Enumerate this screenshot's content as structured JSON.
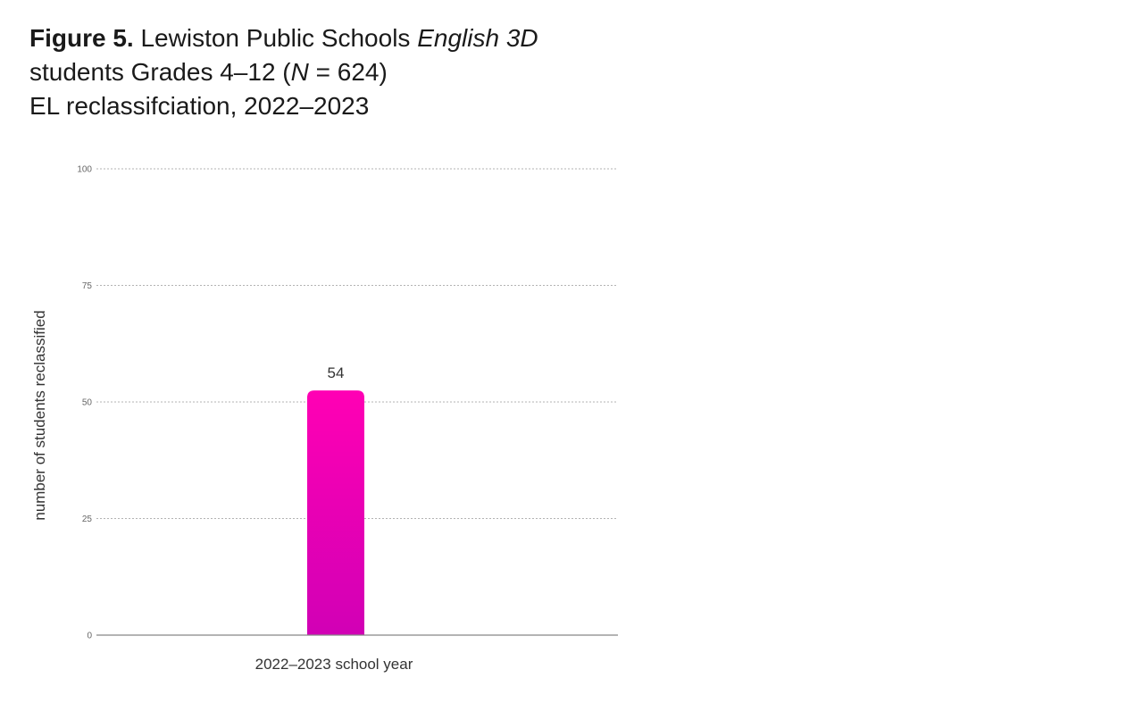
{
  "figure": {
    "label": "Figure 5.",
    "title_part1": " Lewiston Public Schools ",
    "title_program": "English 3D",
    "title_line2_prefix": "students Grades 4–12 (",
    "title_n_symbol": "N",
    "title_line2_suffix": " = 624)",
    "title_line3": "EL reclassifciation, 2022–2023"
  },
  "chart_data": {
    "type": "bar",
    "categories": [
      "2022–2023 school year"
    ],
    "values": [
      54
    ],
    "data_labels": [
      "54"
    ],
    "title": "Lewiston Public Schools English 3D students Grades 4–12 (N = 624) EL reclassifciation, 2022–2023",
    "xlabel": "2022–2023 school year",
    "ylabel": "number of students reclassified",
    "ylim": [
      0,
      100
    ],
    "yticks": [
      0,
      25,
      50,
      75,
      100
    ],
    "grid": true,
    "colors": {
      "bar_top": "#ff00b4",
      "bar_bottom": "#d100b5",
      "grid": "#9a9a9a",
      "axis": "#888888"
    }
  }
}
